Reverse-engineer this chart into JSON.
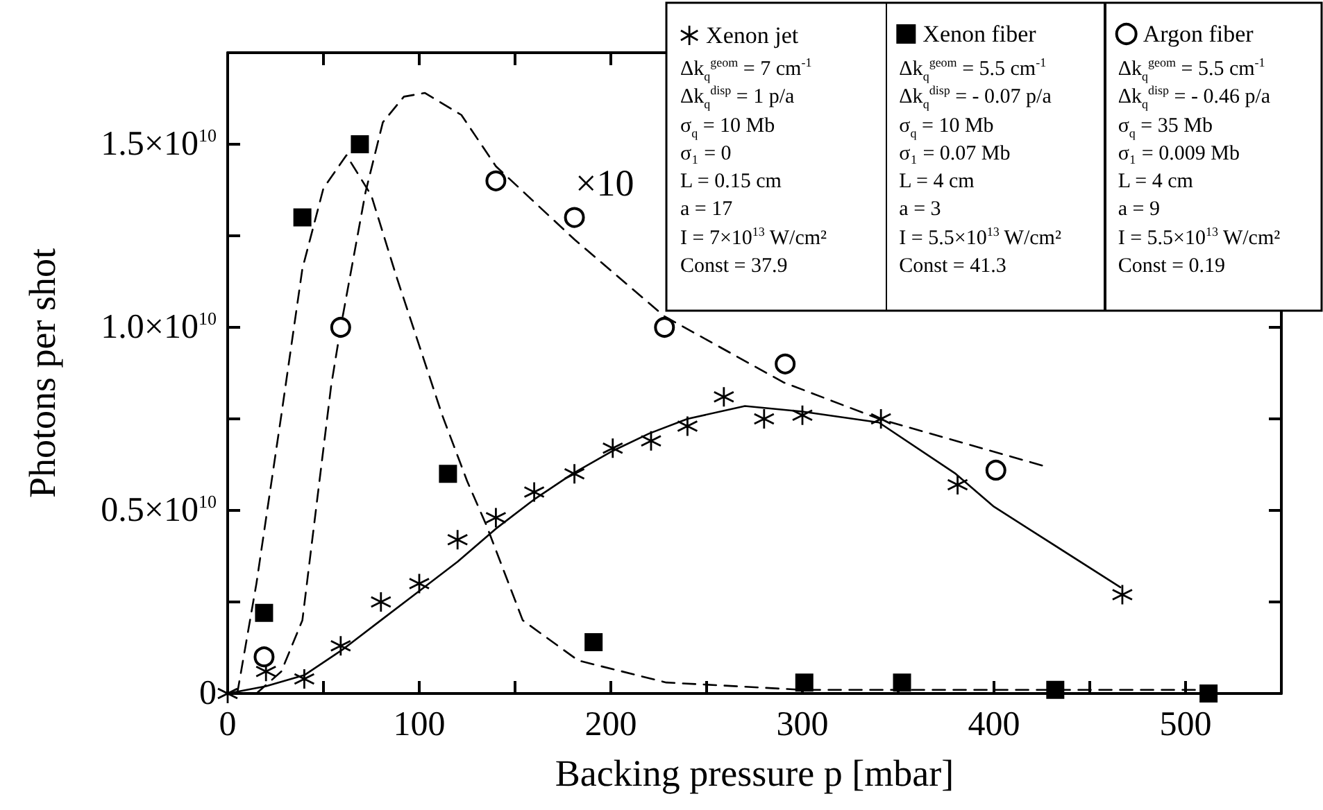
{
  "chart_data": {
    "type": "scatter",
    "xlabel": "Backing pressure p [mbar]",
    "ylabel": "Photons per shot",
    "xlim": [
      0,
      550
    ],
    "xticks": [
      0,
      {
        "value": 50,
        "label": null
      },
      100,
      {
        "value": 150,
        "label": null
      },
      200,
      {
        "value": 250,
        "label": null
      },
      300,
      {
        "value": 350,
        "label": null
      },
      400,
      {
        "value": 450,
        "label": null
      },
      500
    ],
    "ylim": [
      0,
      17500000000.0
    ],
    "yticks": [
      0,
      {
        "value": 2500000000.0,
        "label": null
      },
      {
        "value": 5000000000.0,
        "label": "0.5×10$^{10}$"
      },
      {
        "value": 7500000000.0,
        "label": null
      },
      {
        "value": 10000000000.0,
        "label": "1.0×10$^{10}$"
      },
      {
        "value": 12500000000.0,
        "label": null
      },
      {
        "value": 15000000000.0,
        "label": "1.5×10$^{10}$"
      }
    ],
    "legend": "top right",
    "grid": false,
    "series": [
      {
        "name": "Xenon jet",
        "color": "#000000",
        "marker": "cross",
        "x": [
          0,
          20,
          40,
          59,
          80,
          100,
          120,
          140,
          160,
          181,
          201,
          221,
          240,
          259,
          280,
          300,
          341,
          381,
          467
        ],
        "values": [
          0,
          600000000.0,
          400000000.0,
          1300000000.0,
          2500000000.0,
          3000000000.0,
          4200000000.0,
          4800000000.0,
          5500000000.0,
          6000000000.0,
          6700000000.0,
          6900000000.0,
          7300000000.0,
          8100000000.0,
          7500000000.0,
          7600000000.0,
          7500000000.0,
          5700000000.0,
          2700000000.0
        ]
      },
      {
        "name": "Xenon fiber",
        "color": "#000000",
        "marker": "square",
        "x": [
          19,
          39,
          69,
          115,
          191,
          301,
          352,
          432,
          512
        ],
        "values": [
          2200000000.0,
          13000000000.0,
          15000000000.0,
          6000000000.0,
          1400000000.0,
          300000000.0,
          300000000.0,
          100000000.0,
          0
        ]
      },
      {
        "name": "Argon fiber",
        "color": "#000000",
        "marker": "circle",
        "x": [
          19,
          59,
          140,
          181,
          228,
          291,
          401
        ],
        "values": [
          1000000000.0,
          10000000000.0,
          14000000000.0,
          13000000000.0,
          10000000000.0,
          9000000000.0,
          6100000000.0
        ]
      },
      {
        "type": "line",
        "color": "#000000",
        "marker": "none",
        "line_style": "solid",
        "x": [
          0,
          20,
          40,
          60,
          80,
          100,
          120,
          140,
          160,
          180,
          200,
          220,
          240,
          270,
          300,
          340,
          380,
          400,
          466
        ],
        "values": [
          0,
          200000000.0,
          500000000.0,
          1200000000.0,
          2000000000.0,
          2800000000.0,
          3600000000.0,
          4500000000.0,
          5300000000.0,
          6000000000.0,
          6600000000.0,
          7100000000.0,
          7500000000.0,
          7850000000.0,
          7700000000.0,
          7400000000.0,
          6000000000.0,
          5100000000.0,
          2900000000.0
        ]
      },
      {
        "type": "line",
        "color": "#000000",
        "marker": "none",
        "line_style": "dashed",
        "x": [
          5,
          15,
          28,
          39,
          50,
          62,
          75,
          88,
          100,
          112,
          125,
          135,
          154,
          183,
          229,
          300,
          400,
          510
        ],
        "values": [
          0,
          3000000000.0,
          7600000000.0,
          11600000000.0,
          13800000000.0,
          14700000000.0,
          13600000000.0,
          11400000000.0,
          9500000000.0,
          7600000000.0,
          5800000000.0,
          4600000000.0,
          2000000000.0,
          900000000.0,
          300000000.0,
          100000000.0,
          100000000.0,
          100000000.0
        ]
      },
      {
        "type": "line",
        "color": "#000000",
        "marker": "none",
        "line_style": "dashed",
        "x": [
          15,
          28,
          39,
          54,
          59,
          72,
          81,
          92,
          103,
          122,
          140,
          181,
          228,
          290,
          340,
          427
        ],
        "values": [
          0,
          600000000.0,
          2000000000.0,
          8400000000.0,
          10000000000.0,
          13700000000.0,
          15600000000.0,
          16300000000.0,
          16400000000.0,
          15800000000.0,
          14400000000.0,
          12400000000.0,
          10300000000.0,
          8500000000.0,
          7500000000.0,
          6200000000.0
        ]
      }
    ],
    "annotations": [
      "×10",
      "Δk$_{q}$$^{geom}$ = 7 cm$^{-1}$",
      "Δk$_{q}$$^{disp}$ = 1 p/a",
      "σ$_{q}$ = 10 Mb",
      "σ₁ = 0",
      "L = 0.15 cm",
      "a = 17",
      "I = 7×10$^{13}$ W/cm²",
      "Const = 37.9",
      "Δk$_{q}$$^{geom}$ = 5.5 cm$^{-1}$",
      "Δk$_{q}$$^{disp}$ = - 0.07 p/a",
      "σ$_{q}$ = 10 Mb",
      "σ₁ = 0.07 Mb",
      "L = 4 cm",
      "a = 3",
      "I = 5.5×10$^{13}$ W/cm²",
      "Const = 41.3",
      "Δk$_{q}$$^{geom}$ = 5.5 cm$^{-1}$",
      "Δk$_{q}$$^{disp}$ = - 0.46 p/a",
      "σ$_{q}$ = 35 Mb",
      "σ₁ = 0.009 Mb",
      "L = 4 cm",
      "a = 9",
      "I = 5.5×10$^{13}$ W/cm²",
      "Const = 0.19"
    ]
  }
}
